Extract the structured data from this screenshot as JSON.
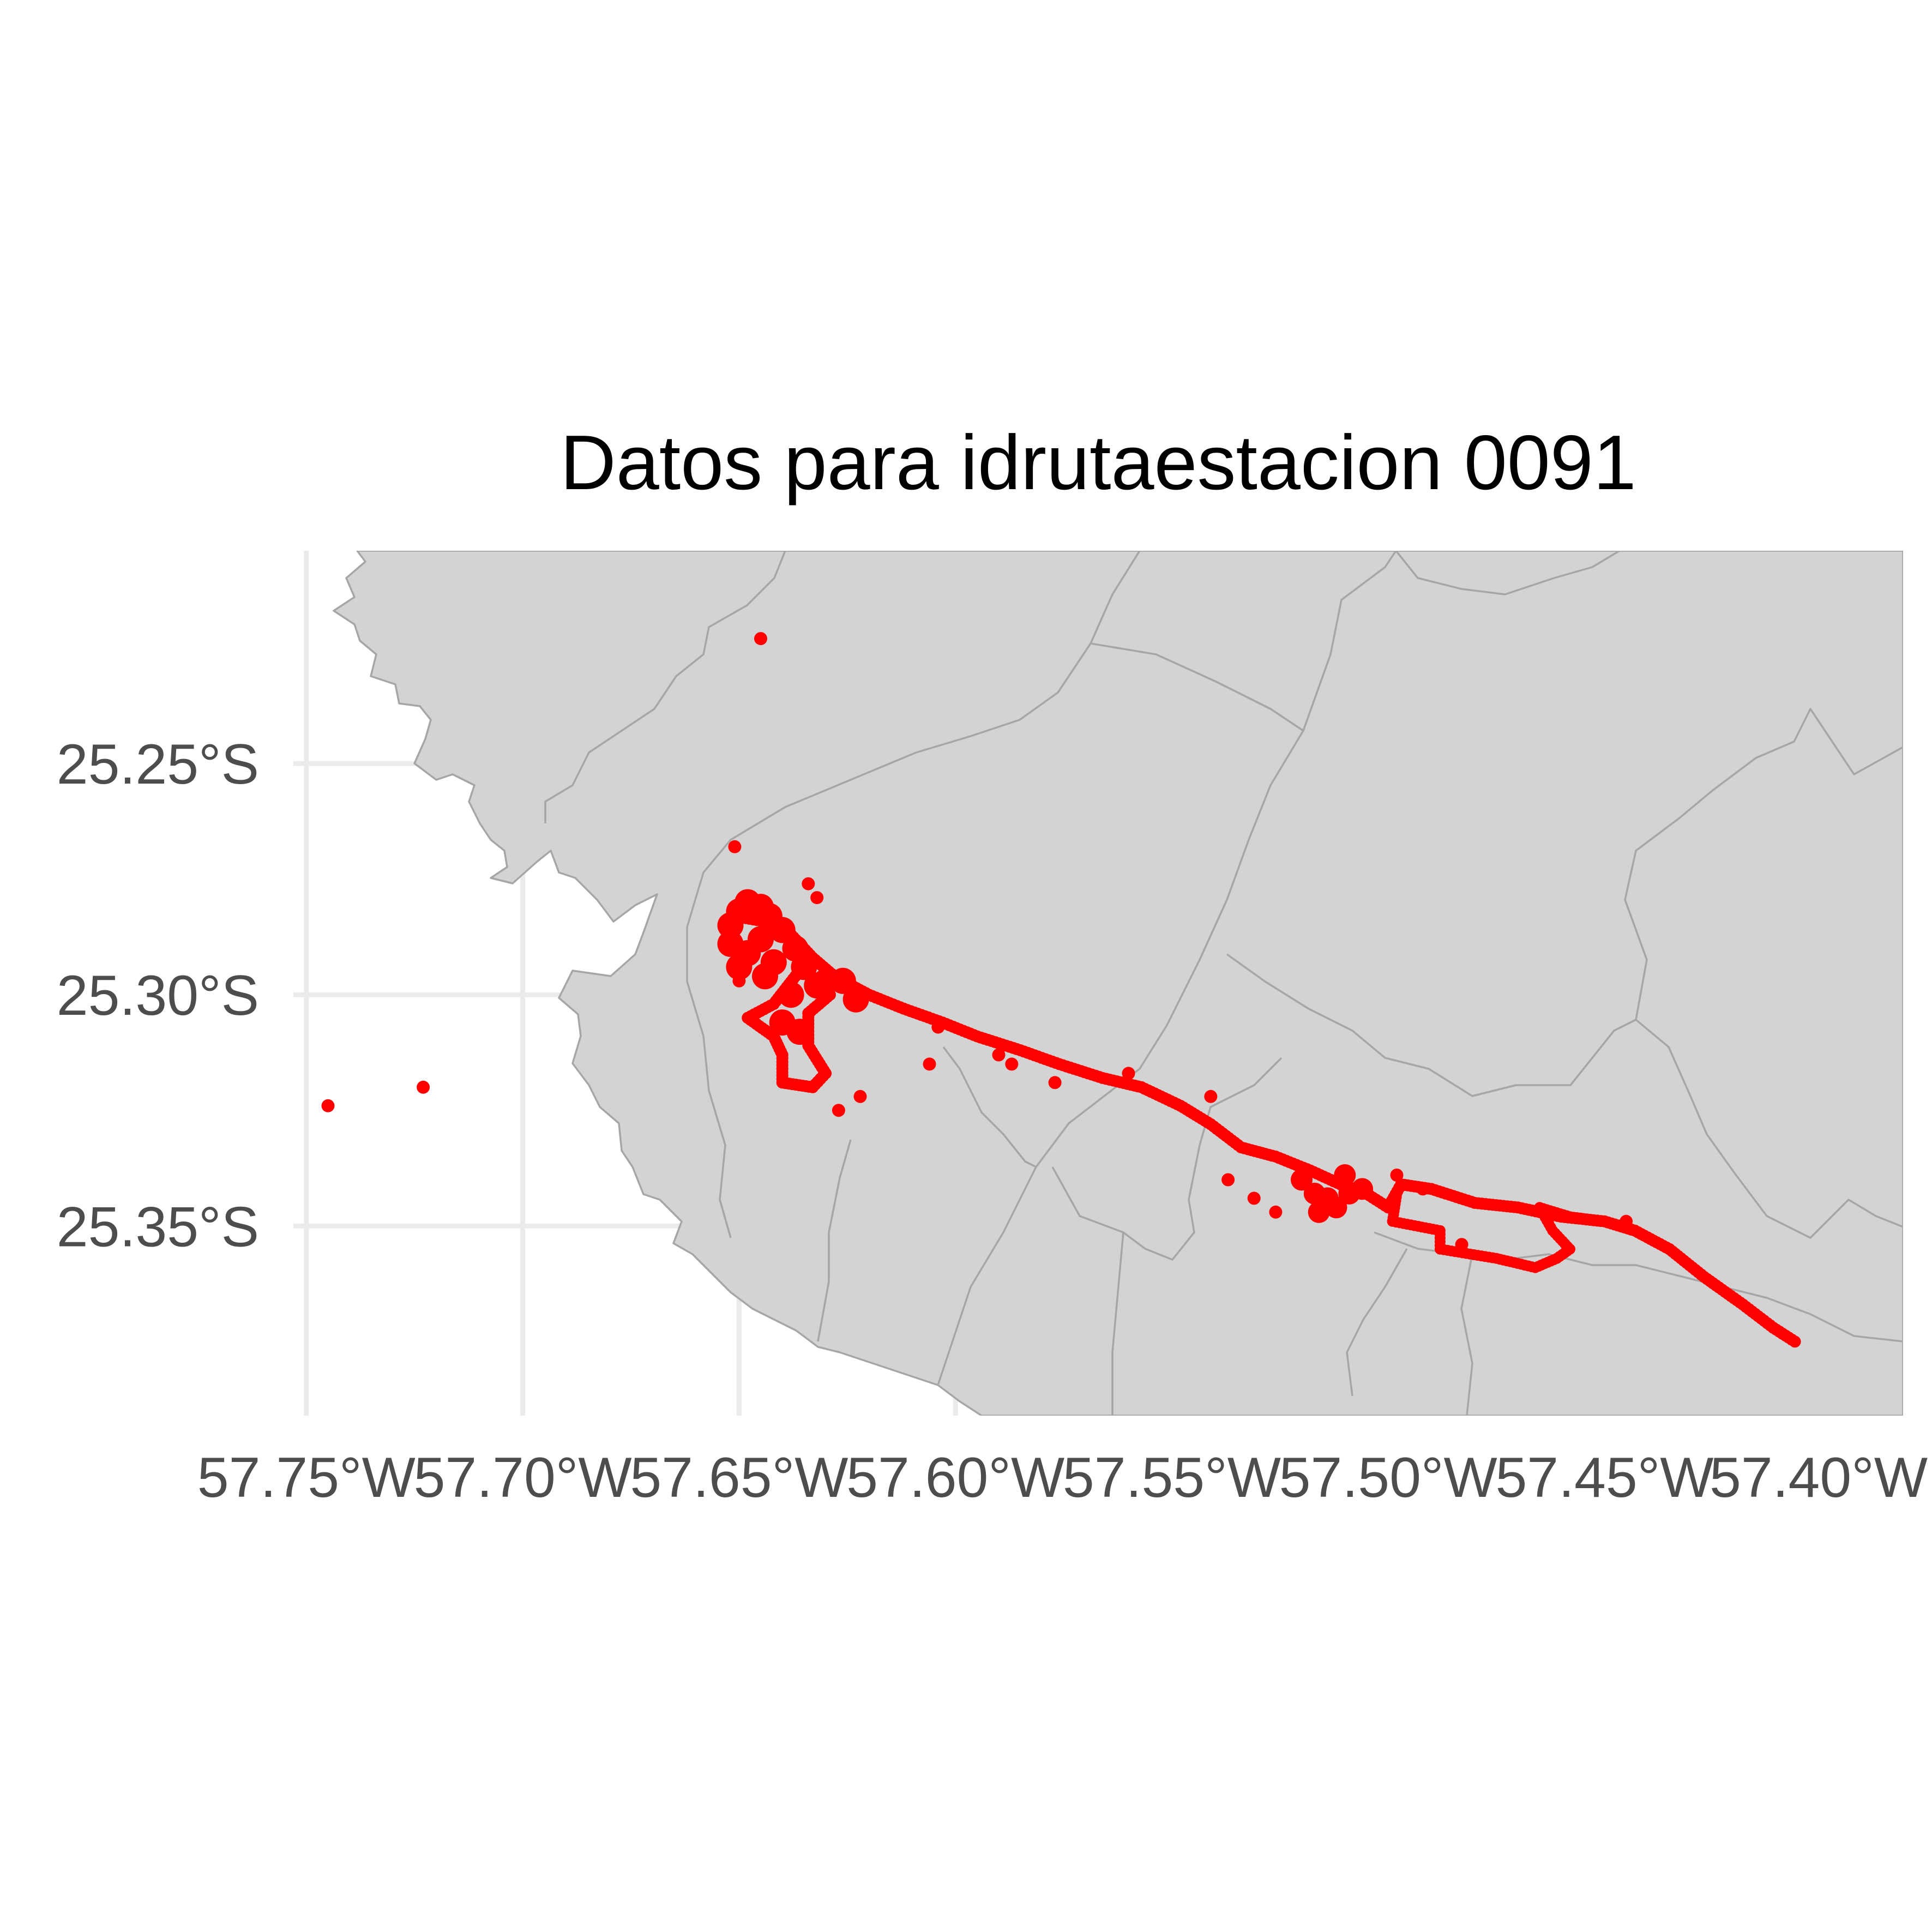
{
  "title": "Datos para idrutaestacion 0091",
  "colors": {
    "land": "#d3d3d3",
    "borders": "#a6a6a6",
    "grid": "#ebebeb",
    "points": "#ff0000",
    "tick_text": "#4d4d4d",
    "title_text": "#000000"
  },
  "chart_data": {
    "type": "scatter",
    "title": "Datos para idrutaestacion 0091",
    "xlabel": "",
    "ylabel": "",
    "xlim": [
      -57.753,
      -57.381
    ],
    "ylim": [
      -25.391,
      -25.204
    ],
    "grid": true,
    "x_ticks": [
      {
        "value": -57.75,
        "label": "57.75°W"
      },
      {
        "value": -57.7,
        "label": "57.70°W"
      },
      {
        "value": -57.65,
        "label": "57.65°W"
      },
      {
        "value": -57.6,
        "label": "57.60°W"
      },
      {
        "value": -57.55,
        "label": "57.55°W"
      },
      {
        "value": -57.5,
        "label": "57.50°W"
      },
      {
        "value": -57.45,
        "label": "57.45°W"
      },
      {
        "value": -57.4,
        "label": "57.40°W"
      }
    ],
    "y_ticks": [
      {
        "value": -25.25,
        "label": "25.25°S"
      },
      {
        "value": -25.3,
        "label": "25.30°S"
      },
      {
        "value": -25.35,
        "label": "25.35°S"
      }
    ],
    "track": [
      [
        -57.651,
        -25.283
      ],
      [
        -57.645,
        -25.284
      ],
      [
        -57.638,
        -25.287
      ],
      [
        -57.633,
        -25.292
      ],
      [
        -57.628,
        -25.296
      ],
      [
        -57.62,
        -25.3
      ],
      [
        -57.612,
        -25.303
      ],
      [
        -57.603,
        -25.306
      ],
      [
        -57.595,
        -25.309
      ],
      [
        -57.585,
        -25.312
      ],
      [
        -57.576,
        -25.315
      ],
      [
        -57.566,
        -25.318
      ],
      [
        -57.557,
        -25.32
      ],
      [
        -57.548,
        -25.324
      ],
      [
        -57.541,
        -25.328
      ],
      [
        -57.534,
        -25.333
      ],
      [
        -57.526,
        -25.335
      ],
      [
        -57.518,
        -25.338
      ],
      [
        -57.511,
        -25.341
      ],
      [
        -57.505,
        -25.343
      ],
      [
        -57.5,
        -25.346
      ],
      [
        -57.497,
        -25.341
      ],
      [
        -57.49,
        -25.342
      ],
      [
        -57.48,
        -25.345
      ],
      [
        -57.47,
        -25.346
      ],
      [
        -57.46,
        -25.348
      ],
      [
        -57.45,
        -25.349
      ],
      [
        -57.443,
        -25.351
      ],
      [
        -57.435,
        -25.355
      ],
      [
        -57.427,
        -25.361
      ],
      [
        -57.418,
        -25.367
      ],
      [
        -57.411,
        -25.372
      ],
      [
        -57.406,
        -25.375
      ]
    ],
    "loop_east": [
      [
        -57.498,
        -25.343
      ],
      [
        -57.499,
        -25.349
      ],
      [
        -57.488,
        -25.351
      ],
      [
        -57.488,
        -25.355
      ],
      [
        -57.475,
        -25.357
      ],
      [
        -57.466,
        -25.359
      ],
      [
        -57.461,
        -25.357
      ],
      [
        -57.458,
        -25.355
      ],
      [
        -57.462,
        -25.351
      ],
      [
        -57.465,
        -25.346
      ],
      [
        -57.458,
        -25.348
      ],
      [
        -57.45,
        -25.349
      ]
    ],
    "loop_west": [
      [
        -57.637,
        -25.296
      ],
      [
        -57.642,
        -25.302
      ],
      [
        -57.648,
        -25.305
      ],
      [
        -57.642,
        -25.309
      ],
      [
        -57.64,
        -25.313
      ],
      [
        -57.64,
        -25.319
      ],
      [
        -57.633,
        -25.32
      ],
      [
        -57.63,
        -25.317
      ],
      [
        -57.634,
        -25.311
      ],
      [
        -57.634,
        -25.304
      ],
      [
        -57.629,
        -25.3
      ],
      [
        -57.631,
        -25.296
      ]
    ],
    "cluster_west": [
      [
        -57.652,
        -25.285
      ],
      [
        -57.65,
        -25.282
      ],
      [
        -57.648,
        -25.28
      ],
      [
        -57.645,
        -25.281
      ],
      [
        -57.643,
        -25.283
      ],
      [
        -57.652,
        -25.289
      ],
      [
        -57.648,
        -25.291
      ],
      [
        -57.645,
        -25.288
      ],
      [
        -57.64,
        -25.286
      ],
      [
        -57.637,
        -25.29
      ],
      [
        -57.65,
        -25.294
      ],
      [
        -57.642,
        -25.293
      ],
      [
        -57.635,
        -25.294
      ],
      [
        -57.632,
        -25.298
      ],
      [
        -57.626,
        -25.297
      ],
      [
        -57.623,
        -25.301
      ],
      [
        -57.644,
        -25.296
      ],
      [
        -57.638,
        -25.3
      ],
      [
        -57.64,
        -25.306
      ],
      [
        -57.636,
        -25.308
      ]
    ],
    "cluster_mid": [
      [
        -57.52,
        -25.34
      ],
      [
        -57.517,
        -25.343
      ],
      [
        -57.514,
        -25.344
      ],
      [
        -57.512,
        -25.346
      ],
      [
        -57.509,
        -25.343
      ],
      [
        -57.506,
        -25.342
      ],
      [
        -57.516,
        -25.347
      ],
      [
        -57.51,
        -25.339
      ]
    ],
    "outliers": [
      [
        -57.645,
        -25.223
      ],
      [
        -57.651,
        -25.268
      ],
      [
        -57.634,
        -25.276
      ],
      [
        -57.632,
        -25.279
      ],
      [
        -57.65,
        -25.297
      ],
      [
        -57.745,
        -25.324
      ],
      [
        -57.723,
        -25.32
      ],
      [
        -57.606,
        -25.315
      ],
      [
        -57.59,
        -25.313
      ],
      [
        -57.587,
        -25.315
      ],
      [
        -57.577,
        -25.319
      ],
      [
        -57.56,
        -25.317
      ],
      [
        -57.541,
        -25.322
      ],
      [
        -57.537,
        -25.34
      ],
      [
        -57.531,
        -25.344
      ],
      [
        -57.526,
        -25.347
      ],
      [
        -57.498,
        -25.339
      ],
      [
        -57.492,
        -25.342
      ],
      [
        -57.483,
        -25.354
      ],
      [
        -57.445,
        -25.349
      ],
      [
        -57.622,
        -25.322
      ],
      [
        -57.627,
        -25.325
      ],
      [
        -57.604,
        -25.307
      ]
    ]
  }
}
